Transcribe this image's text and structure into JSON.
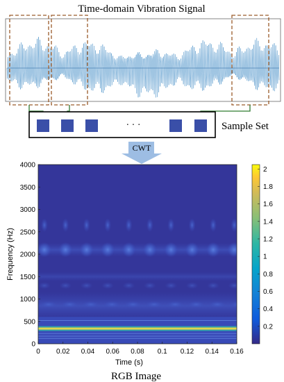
{
  "top": {
    "title": "Time-domain Vibration Signal"
  },
  "sample_set": {
    "label": "Sample Set",
    "dots": "·      ·      ·"
  },
  "arrow": {
    "label": "CWT"
  },
  "bottom": {
    "caption": "RGB Image"
  },
  "colors": {
    "signal": "#2d7fc0",
    "dash_box": "#9a5a2a",
    "green_arrow": "#2f7a2f",
    "sample_square": "#3a4fa8",
    "cwt_arrow": "#9dbde3",
    "plot_bg": "#34369a"
  },
  "chart_data": {
    "type": "heatmap",
    "xlabel": "Time (s)",
    "ylabel": "Frequency (Hz)",
    "xlim": [
      0,
      0.16
    ],
    "ylim": [
      0,
      4000
    ],
    "xticks": [
      "0",
      "0.02",
      "0.04",
      "0.06",
      "0.08",
      "0.1",
      "0.12",
      "0.14",
      "0.16"
    ],
    "yticks": [
      "0",
      "500",
      "1000",
      "1500",
      "2000",
      "2500",
      "3000",
      "3500",
      "4000"
    ],
    "colorbar": {
      "ticks": [
        "0.2",
        "0.4",
        "0.6",
        "0.8",
        "1",
        "1.2",
        "1.4",
        "1.6",
        "1.8",
        "2"
      ],
      "range": [
        0,
        2.05
      ],
      "colormap": "parula"
    },
    "features": {
      "strong_band_hz": 340,
      "band_2000_hz": 2100,
      "band_2700_hz": 2650,
      "pulse_times_s": [
        0.005,
        0.022,
        0.039,
        0.056,
        0.073,
        0.09,
        0.107,
        0.124,
        0.141,
        0.158
      ]
    }
  }
}
